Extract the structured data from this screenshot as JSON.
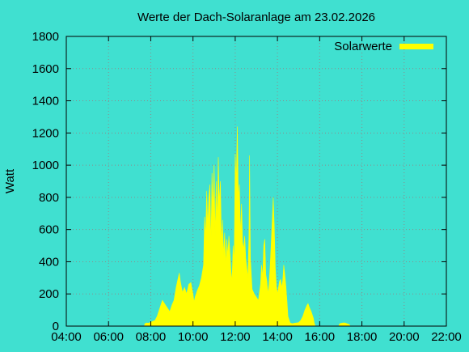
{
  "chart_data": {
    "type": "area",
    "title": "Werte der Dach-Solaranlage am 23.02.2026",
    "xlabel": "",
    "ylabel": "Watt",
    "x_unit": "hours",
    "xlim": [
      4,
      22
    ],
    "ylim": [
      0,
      1800
    ],
    "xticks": [
      4,
      6,
      8,
      10,
      12,
      14,
      16,
      18,
      20,
      22
    ],
    "xtick_labels": [
      "04:00",
      "06:00",
      "08:00",
      "10:00",
      "12:00",
      "14:00",
      "16:00",
      "18:00",
      "20:00",
      "22:00"
    ],
    "yticks": [
      0,
      200,
      400,
      600,
      800,
      1000,
      1200,
      1400,
      1600,
      1800
    ],
    "ytick_labels": [
      "0",
      "200",
      "400",
      "600",
      "800",
      "1000",
      "1200",
      "1400",
      "1600",
      "1800"
    ],
    "grid": true,
    "legend_position": "top-right",
    "series": [
      {
        "name": "Solarwerte",
        "color": "#FFFF00",
        "points": [
          [
            7.7,
            0
          ],
          [
            7.72,
            15
          ],
          [
            7.8,
            20
          ],
          [
            7.9,
            18
          ],
          [
            8.0,
            25
          ],
          [
            8.1,
            30
          ],
          [
            8.2,
            35
          ],
          [
            8.3,
            60
          ],
          [
            8.4,
            100
          ],
          [
            8.5,
            140
          ],
          [
            8.55,
            160
          ],
          [
            8.6,
            150
          ],
          [
            8.7,
            130
          ],
          [
            8.8,
            110
          ],
          [
            8.9,
            90
          ],
          [
            9.0,
            130
          ],
          [
            9.1,
            160
          ],
          [
            9.2,
            240
          ],
          [
            9.3,
            300
          ],
          [
            9.35,
            330
          ],
          [
            9.4,
            280
          ],
          [
            9.5,
            210
          ],
          [
            9.6,
            240
          ],
          [
            9.7,
            200
          ],
          [
            9.8,
            260
          ],
          [
            9.9,
            270
          ],
          [
            10.0,
            200
          ],
          [
            10.05,
            150
          ],
          [
            10.1,
            180
          ],
          [
            10.2,
            220
          ],
          [
            10.3,
            250
          ],
          [
            10.4,
            300
          ],
          [
            10.5,
            380
          ],
          [
            10.55,
            680
          ],
          [
            10.6,
            560
          ],
          [
            10.65,
            840
          ],
          [
            10.7,
            620
          ],
          [
            10.75,
            800
          ],
          [
            10.8,
            880
          ],
          [
            10.85,
            500
          ],
          [
            10.9,
            950
          ],
          [
            10.95,
            720
          ],
          [
            11.0,
            1000
          ],
          [
            11.05,
            560
          ],
          [
            11.1,
            900
          ],
          [
            11.15,
            640
          ],
          [
            11.2,
            1050
          ],
          [
            11.25,
            760
          ],
          [
            11.3,
            900
          ],
          [
            11.35,
            500
          ],
          [
            11.4,
            660
          ],
          [
            11.45,
            440
          ],
          [
            11.5,
            580
          ],
          [
            11.55,
            380
          ],
          [
            11.6,
            540
          ],
          [
            11.65,
            440
          ],
          [
            11.7,
            560
          ],
          [
            11.75,
            460
          ],
          [
            11.8,
            340
          ],
          [
            11.85,
            280
          ],
          [
            11.9,
            500
          ],
          [
            11.95,
            400
          ],
          [
            12.0,
            1070
          ],
          [
            12.05,
            900
          ],
          [
            12.1,
            1240
          ],
          [
            12.12,
            1060
          ],
          [
            12.15,
            800
          ],
          [
            12.2,
            880
          ],
          [
            12.25,
            560
          ],
          [
            12.3,
            760
          ],
          [
            12.35,
            520
          ],
          [
            12.4,
            480
          ],
          [
            12.45,
            560
          ],
          [
            12.5,
            420
          ],
          [
            12.55,
            360
          ],
          [
            12.6,
            300
          ],
          [
            12.65,
            560
          ],
          [
            12.68,
            1060
          ],
          [
            12.72,
            420
          ],
          [
            12.8,
            230
          ],
          [
            12.9,
            200
          ],
          [
            13.0,
            180
          ],
          [
            13.1,
            160
          ],
          [
            13.2,
            260
          ],
          [
            13.25,
            380
          ],
          [
            13.3,
            300
          ],
          [
            13.35,
            500
          ],
          [
            13.4,
            540
          ],
          [
            13.45,
            320
          ],
          [
            13.5,
            280
          ],
          [
            13.55,
            200
          ],
          [
            13.6,
            260
          ],
          [
            13.65,
            360
          ],
          [
            13.7,
            500
          ],
          [
            13.75,
            650
          ],
          [
            13.8,
            800
          ],
          [
            13.85,
            620
          ],
          [
            13.9,
            360
          ],
          [
            13.95,
            250
          ],
          [
            14.0,
            200
          ],
          [
            14.1,
            280
          ],
          [
            14.15,
            290
          ],
          [
            14.2,
            240
          ],
          [
            14.25,
            280
          ],
          [
            14.3,
            380
          ],
          [
            14.35,
            320
          ],
          [
            14.4,
            250
          ],
          [
            14.45,
            160
          ],
          [
            14.5,
            60
          ],
          [
            14.6,
            20
          ],
          [
            14.7,
            15
          ],
          [
            14.8,
            18
          ],
          [
            15.0,
            22
          ],
          [
            15.1,
            35
          ],
          [
            15.2,
            60
          ],
          [
            15.3,
            100
          ],
          [
            15.4,
            130
          ],
          [
            15.45,
            140
          ],
          [
            15.5,
            120
          ],
          [
            15.6,
            90
          ],
          [
            15.7,
            50
          ],
          [
            15.75,
            15
          ],
          [
            15.8,
            0
          ],
          [
            16.9,
            0
          ],
          [
            16.95,
            15
          ],
          [
            17.1,
            20
          ],
          [
            17.2,
            20
          ],
          [
            17.3,
            15
          ],
          [
            17.4,
            10
          ],
          [
            17.45,
            0
          ]
        ]
      }
    ]
  }
}
